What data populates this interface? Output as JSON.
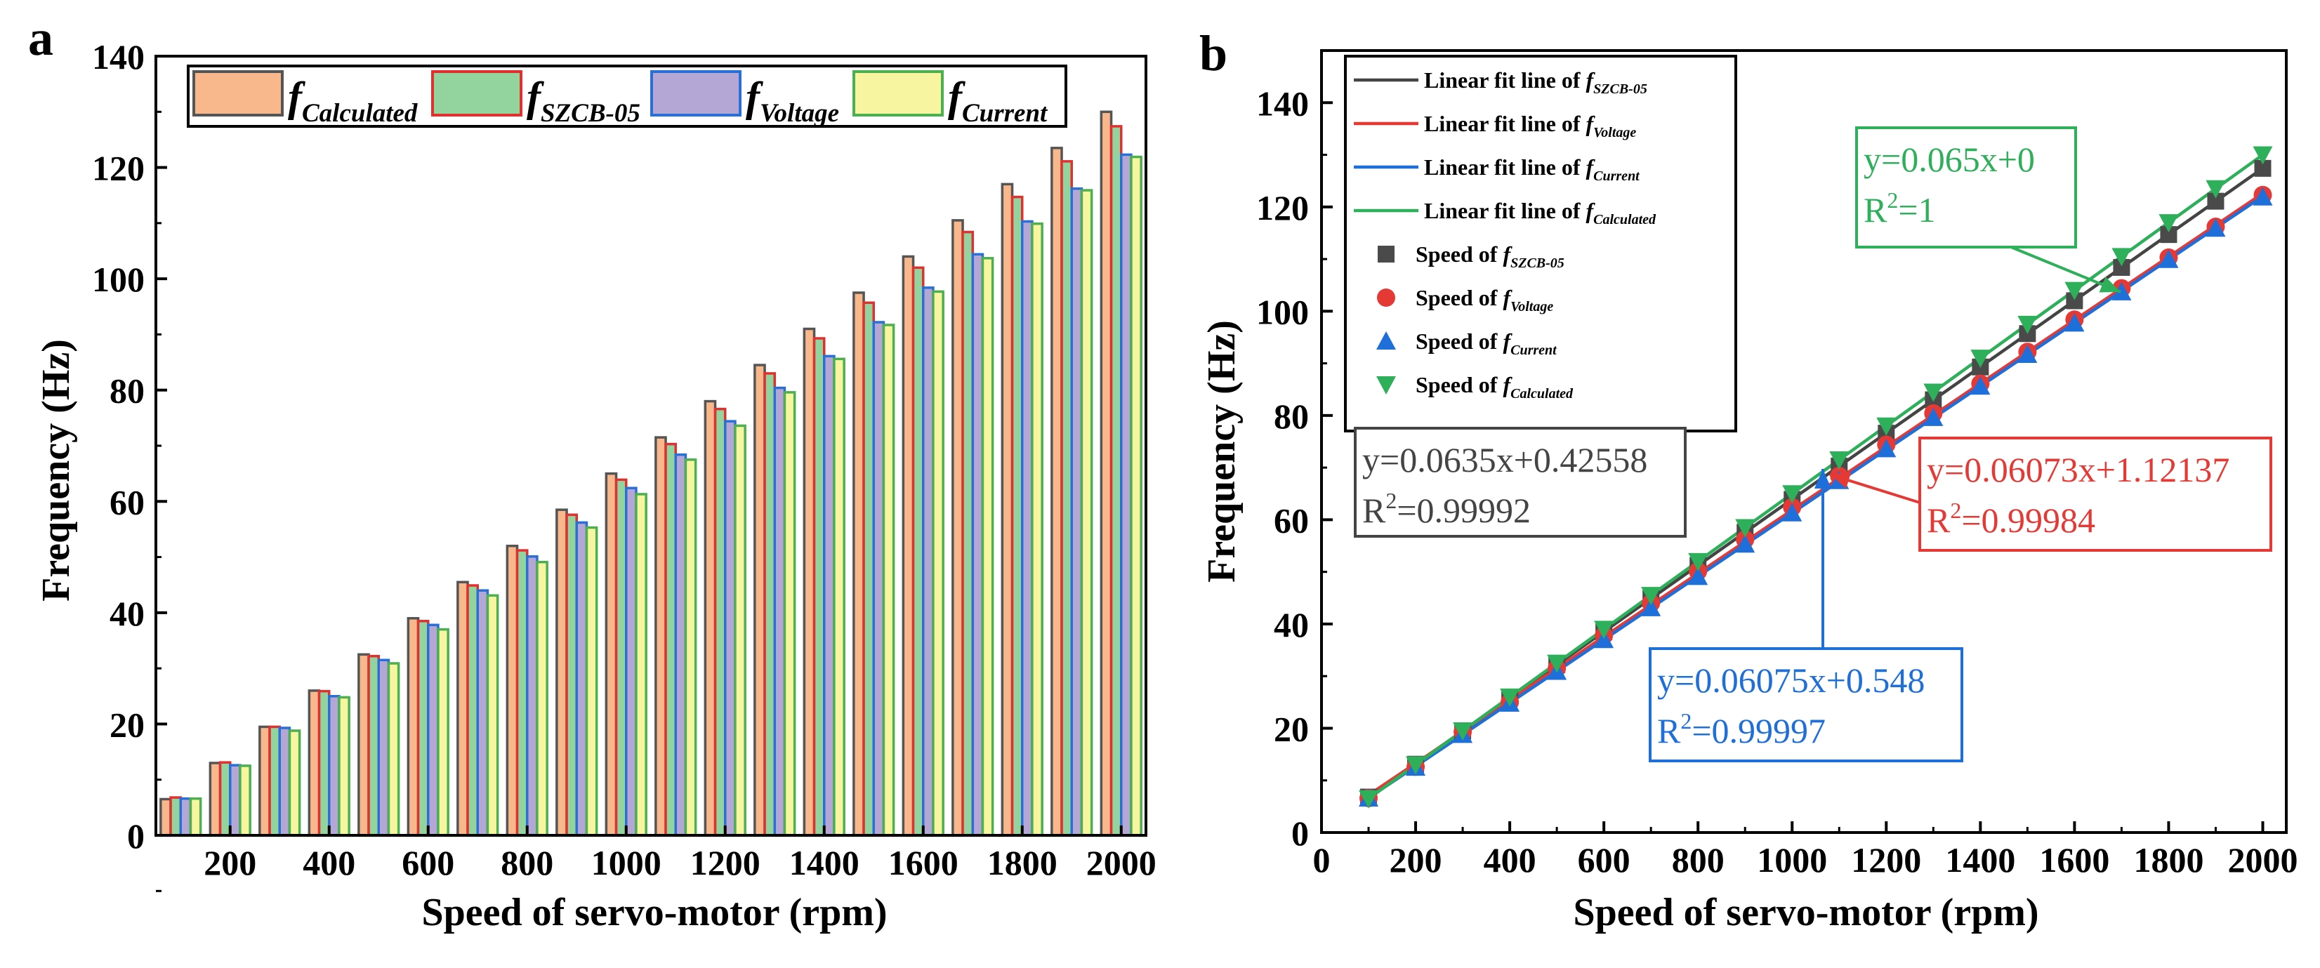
{
  "chart_data": [
    {
      "panel_label": "a",
      "type": "bar",
      "xlabel": "Speed of servo-motor (rpm)",
      "ylabel": "Frequency (Hz)",
      "ylim": [
        0,
        140
      ],
      "yticks": [
        "0",
        "20",
        "40",
        "60",
        "80",
        "100",
        "120",
        "140"
      ],
      "xticks": [
        "200",
        "400",
        "600",
        "800",
        "1000",
        "1200",
        "1400",
        "1600",
        "1800",
        "2000"
      ],
      "categories": [
        100,
        200,
        300,
        400,
        500,
        600,
        700,
        800,
        900,
        1000,
        1100,
        1200,
        1300,
        1400,
        1500,
        1600,
        1700,
        1800,
        1900,
        2000
      ],
      "legend_position": "top",
      "series": [
        {
          "name": "f",
          "sub": "Calculated",
          "color": "#f9b88c",
          "edge": "#555555",
          "values": [
            6.5,
            13,
            19.5,
            26,
            32.5,
            39,
            45.5,
            52,
            58.5,
            65,
            71.5,
            78,
            84.5,
            91,
            97.5,
            104,
            110.5,
            117,
            123.5,
            130
          ]
        },
        {
          "name": "f",
          "sub": "SZCB-05",
          "color": "#93d49e",
          "edge": "#e03030",
          "values": [
            6.8,
            13.1,
            19.5,
            25.9,
            32.2,
            38.5,
            44.9,
            51.2,
            57.6,
            63.9,
            70.3,
            76.6,
            83.0,
            89.3,
            95.7,
            102.0,
            108.4,
            114.7,
            121.1,
            127.4
          ]
        },
        {
          "name": "f",
          "sub": "Voltage",
          "color": "#b4a7d6",
          "edge": "#2a6fd6",
          "values": [
            6.6,
            12.6,
            19.3,
            25.0,
            31.5,
            37.8,
            44.0,
            50.1,
            56.2,
            62.4,
            68.4,
            74.4,
            80.4,
            86.1,
            92.2,
            98.4,
            104.4,
            110.3,
            116.2,
            122.3
          ]
        },
        {
          "name": "f",
          "sub": "Current",
          "color": "#f7f5a0",
          "edge": "#4caf50",
          "values": [
            6.6,
            12.5,
            18.8,
            24.8,
            30.9,
            37.0,
            43.1,
            49.1,
            55.3,
            61.3,
            67.5,
            73.6,
            79.6,
            85.6,
            91.7,
            97.7,
            103.7,
            109.9,
            115.9,
            121.9
          ]
        }
      ]
    },
    {
      "panel_label": "b",
      "type": "scatter",
      "xlabel": "Speed of servo-motor (rpm)",
      "ylabel": "Frequency (Hz)",
      "xlim": [
        0,
        2050
      ],
      "ylim": [
        0,
        150
      ],
      "xticks": [
        "0",
        "200",
        "400",
        "600",
        "800",
        "1000",
        "1200",
        "1400",
        "1600",
        "1800",
        "2000"
      ],
      "yticks": [
        "0",
        "20",
        "40",
        "60",
        "80",
        "100",
        "120",
        "140"
      ],
      "x": [
        100,
        200,
        300,
        400,
        500,
        600,
        700,
        800,
        900,
        1000,
        1100,
        1200,
        1300,
        1400,
        1500,
        1600,
        1700,
        1800,
        1900,
        2000
      ],
      "legend_position": "top-left",
      "fits": [
        {
          "text": "Linear fit line of ",
          "sub": "SZCB-05",
          "slope": 0.0635,
          "intercept": 0.42558,
          "color": "#444444"
        },
        {
          "text": "Linear fit line of ",
          "sub": "Voltage",
          "slope": 0.06073,
          "intercept": 1.12137,
          "color": "#e53935"
        },
        {
          "text": "Linear fit line of ",
          "sub": "Current",
          "slope": 0.06075,
          "intercept": 0.548,
          "color": "#1e6fd9"
        },
        {
          "text": "Linear fit line of ",
          "sub": "Calculated",
          "slope": 0.065,
          "intercept": 0,
          "color": "#2eaf5a"
        }
      ],
      "series": [
        {
          "text": "Speed of ",
          "sub": "SZCB-05",
          "marker": "square",
          "color": "#4a4a4a",
          "values": [
            6.8,
            13.1,
            19.5,
            25.9,
            32.2,
            38.5,
            44.9,
            51.2,
            57.6,
            63.9,
            70.3,
            76.6,
            83.0,
            89.3,
            95.7,
            102.0,
            108.4,
            114.7,
            121.1,
            127.4
          ]
        },
        {
          "text": "Speed of ",
          "sub": "Voltage",
          "marker": "circle",
          "color": "#e53935",
          "values": [
            6.6,
            12.6,
            19.3,
            25.0,
            31.5,
            37.8,
            44.0,
            50.1,
            56.2,
            62.4,
            68.4,
            74.4,
            80.4,
            86.1,
            92.2,
            98.4,
            104.4,
            110.3,
            116.2,
            122.3
          ]
        },
        {
          "text": "Speed of ",
          "sub": "Current",
          "marker": "triangle-up",
          "color": "#1e6fd9",
          "values": [
            6.6,
            12.5,
            18.8,
            24.8,
            30.9,
            37.0,
            43.1,
            49.1,
            55.3,
            61.3,
            67.5,
            73.6,
            79.6,
            85.6,
            91.7,
            97.7,
            103.7,
            109.9,
            115.9,
            121.9
          ]
        },
        {
          "text": "Speed of ",
          "sub": "Calculated",
          "marker": "triangle-down",
          "color": "#2eaf5a",
          "values": [
            6.5,
            13,
            19.5,
            26,
            32.5,
            39,
            45.5,
            52,
            58.5,
            65,
            71.5,
            78,
            84.5,
            91,
            97.5,
            104,
            110.5,
            117,
            123.5,
            130
          ]
        }
      ],
      "annotations": [
        {
          "eq": "y=0.065x+0",
          "r2_value": "=1",
          "color": "#2eaf5a"
        },
        {
          "eq": "y=0.0635x+0.42558",
          "r2_value": "=0.99992",
          "color": "#444444"
        },
        {
          "eq": "y=0.06073x+1.12137",
          "r2_value": "=0.99984",
          "color": "#e53935"
        },
        {
          "eq": "y=0.06075x+0.548",
          "r2_value": "=0.99997",
          "color": "#1e6fd9"
        }
      ],
      "r2_prefix": "R",
      "r2_power": "2"
    }
  ]
}
